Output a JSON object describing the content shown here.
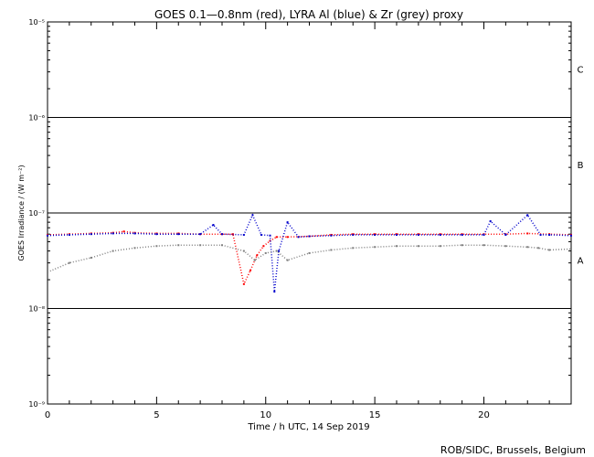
{
  "chart_data": {
    "type": "scatter",
    "title": "GOES 0.1—0.8nm (red), LYRA Al (blue) & Zr (grey) proxy",
    "xlabel": "Time / h UTC, 14 Sep 2019",
    "ylabel": "GOES Irradiance / (W m⁻²)",
    "xlim": [
      0,
      24
    ],
    "ylim": [
      1e-09,
      1e-05
    ],
    "yscale": "log",
    "x_ticks": [
      0,
      5,
      10,
      15,
      20
    ],
    "y_ticks": [
      1e-09,
      1e-08,
      1e-07,
      1e-06,
      1e-05
    ],
    "y_tick_labels": [
      "10⁻⁹",
      "10⁻⁸",
      "10⁻⁷",
      "10⁻⁶",
      "10⁻⁵"
    ],
    "flare_classes": [
      {
        "label": "A",
        "y": 3.2e-08
      },
      {
        "label": "B",
        "y": 3.2e-07
      },
      {
        "label": "C",
        "y": 3.2e-06
      }
    ],
    "class_lines": [
      1e-08,
      1e-07,
      1e-06
    ],
    "series": [
      {
        "name": "GOES 0.1—0.8nm",
        "color": "#ff0000",
        "x": [
          0,
          1,
          2,
          3,
          3.5,
          4,
          5,
          6,
          7,
          8,
          8.5,
          9,
          9.3,
          9.6,
          9.9,
          10.2,
          10.5,
          11,
          12,
          13,
          14,
          15,
          16,
          17,
          18,
          19,
          20,
          21,
          22,
          23,
          24
        ],
        "y": [
          5.9e-08,
          6e-08,
          6.1e-08,
          6.2e-08,
          6.4e-08,
          6.2e-08,
          6.1e-08,
          6.1e-08,
          6e-08,
          6e-08,
          6e-08,
          1.8e-08,
          2.5e-08,
          3.6e-08,
          4.5e-08,
          5.1e-08,
          5.6e-08,
          5.6e-08,
          5.7e-08,
          5.9e-08,
          6e-08,
          6e-08,
          6e-08,
          6e-08,
          6e-08,
          6e-08,
          6e-08,
          6e-08,
          6.1e-08,
          6e-08,
          5.9e-08
        ]
      },
      {
        "name": "LYRA Al",
        "color": "#0000cc",
        "x": [
          0,
          1,
          2,
          3,
          4,
          5,
          6,
          7,
          7.6,
          8,
          9,
          9.4,
          9.8,
          10.2,
          10.4,
          10.6,
          11,
          11.5,
          12,
          13,
          14,
          15,
          16,
          17,
          18,
          19,
          20,
          20.3,
          21,
          22,
          22.6,
          23,
          24
        ],
        "y": [
          5.8e-08,
          5.9e-08,
          6e-08,
          6.1e-08,
          6.1e-08,
          6e-08,
          6e-08,
          6e-08,
          7.5e-08,
          6e-08,
          5.9e-08,
          9.5e-08,
          5.9e-08,
          5.8e-08,
          1.5e-08,
          4e-08,
          8e-08,
          5.6e-08,
          5.7e-08,
          5.8e-08,
          5.9e-08,
          5.9e-08,
          5.9e-08,
          5.9e-08,
          5.9e-08,
          5.9e-08,
          5.9e-08,
          8.2e-08,
          5.9e-08,
          9.5e-08,
          5.9e-08,
          5.9e-08,
          5.8e-08
        ]
      },
      {
        "name": "Zr proxy",
        "color": "#808080",
        "x": [
          0,
          1,
          2,
          3,
          4,
          5,
          6,
          7,
          8,
          9,
          9.5,
          10,
          10.5,
          11,
          12,
          13,
          14,
          15,
          16,
          17,
          18,
          19,
          20,
          21,
          22,
          22.5,
          23,
          24
        ],
        "y": [
          2.4e-08,
          3e-08,
          3.4e-08,
          4e-08,
          4.3e-08,
          4.5e-08,
          4.6e-08,
          4.6e-08,
          4.6e-08,
          4e-08,
          3.2e-08,
          3.8e-08,
          4e-08,
          3.2e-08,
          3.8e-08,
          4.1e-08,
          4.3e-08,
          4.4e-08,
          4.5e-08,
          4.5e-08,
          4.5e-08,
          4.6e-08,
          4.6e-08,
          4.5e-08,
          4.4e-08,
          4.3e-08,
          4.1e-08,
          4.2e-08
        ]
      }
    ]
  },
  "credit": "ROB/SIDC, Brussels, Belgium"
}
